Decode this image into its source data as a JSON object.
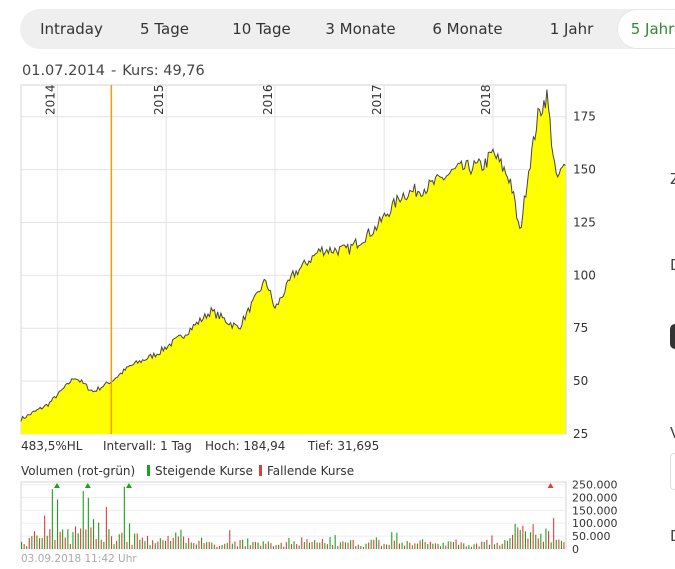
{
  "tabs": [
    {
      "label": "Intraday",
      "active": false
    },
    {
      "label": "5 Tage",
      "active": false
    },
    {
      "label": "10 Tage",
      "active": false
    },
    {
      "label": "3 Monate",
      "active": false
    },
    {
      "label": "6 Monate",
      "active": false
    },
    {
      "label": "1 Jahr",
      "active": false
    },
    {
      "label": "5 Jahre",
      "active": true
    }
  ],
  "info": {
    "date": "01.07.2014",
    "separator": "-",
    "price_label": "Kurs: 49,76"
  },
  "stats": {
    "hl": "483,5%HL",
    "interval": "Intervall: 1 Tag",
    "high": "Hoch: 184,94",
    "low": "Tief: 31,695"
  },
  "volume": {
    "title": "Volumen (rot-grün)",
    "legend_up": "Steigende Kurse",
    "legend_down": "Fallende Kurse"
  },
  "footer": {
    "timestamp": "03.09.2018 11:42 Uhr"
  },
  "right_fragments": {
    "r1": "Z",
    "r2": "D",
    "r3": "V",
    "r4": "D"
  },
  "colors": {
    "accent": "#2e8b2e",
    "fill": "#ffff00",
    "line": "#444444",
    "crosshair": "#ff9900",
    "up": "#1aa31a",
    "down": "#e03c3c"
  },
  "chart_data": [
    {
      "type": "area",
      "x_ticks": [
        "2014",
        "2015",
        "2016",
        "2017",
        "2018"
      ],
      "y_ticks": [
        25,
        50,
        75,
        100,
        125,
        150,
        175
      ],
      "ylim": [
        25,
        190
      ],
      "highlight": {
        "date": "01.07.2014",
        "value": 49.76
      },
      "x": [
        "2013-09",
        "2013-12",
        "2014-03",
        "2014-05",
        "2014-07",
        "2014-09",
        "2014-12",
        "2015-03",
        "2015-06",
        "2015-09",
        "2015-12",
        "2016-01",
        "2016-03",
        "2016-06",
        "2016-09",
        "2016-12",
        "2017-03",
        "2017-06",
        "2017-09",
        "2017-12",
        "2018-01",
        "2018-03",
        "2018-04",
        "2018-05",
        "2018-06",
        "2018-07",
        "2018-08",
        "2018-09"
      ],
      "values": [
        32,
        39,
        52,
        45,
        50,
        57,
        63,
        72,
        83,
        75,
        98,
        84,
        100,
        112,
        112,
        122,
        138,
        142,
        150,
        152,
        158,
        145,
        120,
        150,
        175,
        185,
        145,
        152
      ]
    },
    {
      "type": "bar",
      "title": "Volumen (rot-grün)",
      "y_ticks": [
        0,
        50000,
        100000,
        150000,
        200000,
        250000
      ],
      "y_tick_labels": [
        "0",
        "50.000",
        "100.000",
        "150.000",
        "200.000",
        "250.000"
      ],
      "ylim": [
        0,
        260000
      ],
      "series": [
        {
          "name": "Steigende Kurse",
          "values": [
            40000,
            120000,
            60000,
            250000,
            90000,
            70000,
            250000,
            130000,
            80000,
            60000,
            250000,
            100000,
            50000,
            70000,
            40000,
            90000,
            30000,
            60000,
            40000,
            30000,
            60000,
            40000,
            50000,
            30000,
            40000,
            20000,
            50000,
            30000,
            40000,
            30000,
            60000,
            30000,
            40000,
            30000,
            50000,
            30000,
            100000,
            40000,
            30000,
            40000,
            30000,
            60000,
            30000,
            40000,
            30000,
            50000,
            40000,
            60000,
            120000,
            90000,
            60000,
            80000,
            40000
          ]
        },
        {
          "name": "Fallende Kurse",
          "values": [
            60000,
            100000,
            180000,
            120000,
            60000,
            140000,
            90000,
            100000,
            170000,
            70000,
            60000,
            90000,
            120000,
            40000,
            80000,
            50000,
            60000,
            40000,
            50000,
            40000,
            100000,
            40000,
            30000,
            50000,
            40000,
            30000,
            40000,
            50000,
            30000,
            40000,
            30000,
            40000,
            40000,
            30000,
            40000,
            30000,
            40000,
            30000,
            50000,
            40000,
            30000,
            40000,
            50000,
            30000,
            40000,
            60000,
            50000,
            80000,
            100000,
            120000,
            60000,
            250000,
            40000
          ]
        }
      ]
    }
  ]
}
